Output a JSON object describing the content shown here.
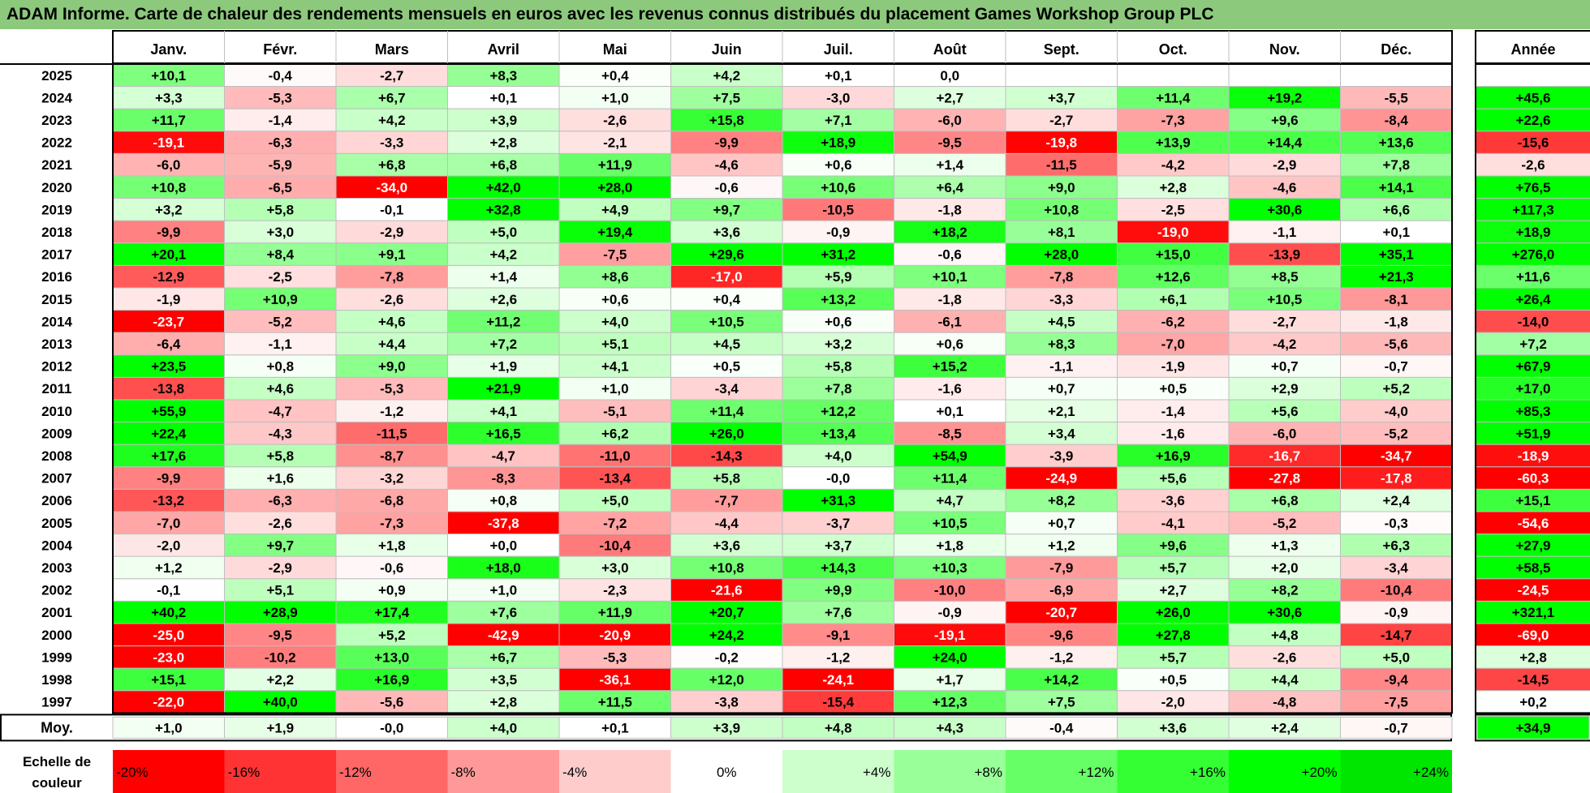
{
  "title": "ADAM Informe. Carte de chaleur des rendements mensuels en euros avec les revenus connus distribués du placement Games Workshop Group PLC",
  "chart_data": {
    "type": "heatmap",
    "columns": [
      "Janv.",
      "Févr.",
      "Mars",
      "Avril",
      "Mai",
      "Juin",
      "Juil.",
      "Août",
      "Sept.",
      "Oct.",
      "Nov.",
      "Déc."
    ],
    "year_column_label": "Année",
    "rows": [
      {
        "label": "2025",
        "values": [
          "+10,1",
          "-0,4",
          "-2,7",
          "+8,3",
          "+0,4",
          "+4,2",
          "+0,1",
          "0,0",
          "",
          "",
          "",
          ""
        ],
        "year": ""
      },
      {
        "label": "2024",
        "values": [
          "+3,3",
          "-5,3",
          "+6,7",
          "+0,1",
          "+1,0",
          "+7,5",
          "-3,0",
          "+2,7",
          "+3,7",
          "+11,4",
          "+19,2",
          "-5,5"
        ],
        "year": "+45,6"
      },
      {
        "label": "2023",
        "values": [
          "+11,7",
          "-1,4",
          "+4,2",
          "+3,9",
          "-2,6",
          "+15,8",
          "+7,1",
          "-6,0",
          "-2,7",
          "-7,3",
          "+9,6",
          "-8,4"
        ],
        "year": "+22,6"
      },
      {
        "label": "2022",
        "values": [
          "-19,1",
          "-6,3",
          "-3,3",
          "+2,8",
          "-2,1",
          "-9,9",
          "+18,9",
          "-9,5",
          "-19,8",
          "+13,9",
          "+14,4",
          "+13,6"
        ],
        "year": "-15,6"
      },
      {
        "label": "2021",
        "values": [
          "-6,0",
          "-5,9",
          "+6,8",
          "+6,8",
          "+11,9",
          "-4,6",
          "+0,6",
          "+1,4",
          "-11,5",
          "-4,2",
          "-2,9",
          "+7,8"
        ],
        "year": "-2,6"
      },
      {
        "label": "2020",
        "values": [
          "+10,8",
          "-6,5",
          "-34,0",
          "+42,0",
          "+28,0",
          "-0,6",
          "+10,6",
          "+6,4",
          "+9,0",
          "+2,8",
          "-4,6",
          "+14,1"
        ],
        "year": "+76,5"
      },
      {
        "label": "2019",
        "values": [
          "+3,2",
          "+5,8",
          "-0,1",
          "+32,8",
          "+4,9",
          "+9,7",
          "-10,5",
          "-1,8",
          "+10,8",
          "-2,5",
          "+30,6",
          "+6,6"
        ],
        "year": "+117,3"
      },
      {
        "label": "2018",
        "values": [
          "-9,9",
          "+3,0",
          "-2,9",
          "+5,0",
          "+19,4",
          "+3,6",
          "-0,9",
          "+18,2",
          "+8,1",
          "-19,0",
          "-1,1",
          "+0,1"
        ],
        "year": "+18,9"
      },
      {
        "label": "2017",
        "values": [
          "+20,1",
          "+8,4",
          "+9,1",
          "+4,2",
          "-7,5",
          "+29,6",
          "+31,2",
          "-0,6",
          "+28,0",
          "+15,0",
          "-13,9",
          "+35,1"
        ],
        "year": "+276,0"
      },
      {
        "label": "2016",
        "values": [
          "-12,9",
          "-2,5",
          "-7,8",
          "+1,4",
          "+8,6",
          "-17,0",
          "+5,9",
          "+10,1",
          "-7,8",
          "+12,6",
          "+8,5",
          "+21,3"
        ],
        "year": "+11,6"
      },
      {
        "label": "2015",
        "values": [
          "-1,9",
          "+10,9",
          "-2,6",
          "+2,6",
          "+0,6",
          "+0,4",
          "+13,2",
          "-1,8",
          "-3,3",
          "+6,1",
          "+10,5",
          "-8,1"
        ],
        "year": "+26,4"
      },
      {
        "label": "2014",
        "values": [
          "-23,7",
          "-5,2",
          "+4,6",
          "+11,2",
          "+4,0",
          "+10,5",
          "+0,6",
          "-6,1",
          "+4,5",
          "-6,2",
          "-2,7",
          "-1,8"
        ],
        "year": "-14,0"
      },
      {
        "label": "2013",
        "values": [
          "-6,4",
          "-1,1",
          "+4,4",
          "+7,2",
          "+5,1",
          "+4,5",
          "+3,2",
          "+0,6",
          "+8,3",
          "-7,0",
          "-4,2",
          "-5,6"
        ],
        "year": "+7,2"
      },
      {
        "label": "2012",
        "values": [
          "+23,5",
          "+0,8",
          "+9,0",
          "+1,9",
          "+4,1",
          "+0,5",
          "+5,8",
          "+15,2",
          "-1,1",
          "-1,9",
          "+0,7",
          "-0,7"
        ],
        "year": "+67,9"
      },
      {
        "label": "2011",
        "values": [
          "-13,8",
          "+4,6",
          "-5,3",
          "+21,9",
          "+1,0",
          "-3,4",
          "+7,8",
          "-1,6",
          "+0,7",
          "+0,5",
          "+2,9",
          "+5,2"
        ],
        "year": "+17,0"
      },
      {
        "label": "2010",
        "values": [
          "+55,9",
          "-4,7",
          "-1,2",
          "+4,1",
          "-5,1",
          "+11,4",
          "+12,2",
          "+0,1",
          "+2,1",
          "-1,4",
          "+5,6",
          "-4,0"
        ],
        "year": "+85,3"
      },
      {
        "label": "2009",
        "values": [
          "+22,4",
          "-4,3",
          "-11,5",
          "+16,5",
          "+6,2",
          "+26,0",
          "+13,4",
          "-8,5",
          "+3,4",
          "-1,6",
          "-6,0",
          "-5,2"
        ],
        "year": "+51,9"
      },
      {
        "label": "2008",
        "values": [
          "+17,6",
          "+5,8",
          "-8,7",
          "-4,7",
          "-11,0",
          "-14,3",
          "+4,0",
          "+54,9",
          "-3,9",
          "+16,9",
          "-16,7",
          "-34,7"
        ],
        "year": "-18,9"
      },
      {
        "label": "2007",
        "values": [
          "-9,9",
          "+1,6",
          "-3,2",
          "-8,3",
          "-13,4",
          "+5,8",
          "-0,0",
          "+11,4",
          "-24,9",
          "+5,6",
          "-27,8",
          "-17,8"
        ],
        "year": "-60,3"
      },
      {
        "label": "2006",
        "values": [
          "-13,2",
          "-6,3",
          "-6,8",
          "+0,8",
          "+5,0",
          "-7,7",
          "+31,3",
          "+4,7",
          "+8,2",
          "-3,6",
          "+6,8",
          "+2,4"
        ],
        "year": "+15,1"
      },
      {
        "label": "2005",
        "values": [
          "-7,0",
          "-2,6",
          "-7,3",
          "-37,8",
          "-7,2",
          "-4,4",
          "-3,7",
          "+10,5",
          "+0,7",
          "-4,1",
          "-5,2",
          "-0,3"
        ],
        "year": "-54,6"
      },
      {
        "label": "2004",
        "values": [
          "-2,0",
          "+9,7",
          "+1,8",
          "+0,0",
          "-10,4",
          "+3,6",
          "+3,7",
          "+1,8",
          "+1,2",
          "+9,6",
          "+1,3",
          "+6,3"
        ],
        "year": "+27,9"
      },
      {
        "label": "2003",
        "values": [
          "+1,2",
          "-2,9",
          "-0,6",
          "+18,0",
          "+3,0",
          "+10,8",
          "+14,3",
          "+10,3",
          "-7,9",
          "+5,7",
          "+2,0",
          "-3,4"
        ],
        "year": "+58,5"
      },
      {
        "label": "2002",
        "values": [
          "-0,1",
          "+5,1",
          "+0,9",
          "+1,0",
          "-2,3",
          "-21,6",
          "+9,9",
          "-10,0",
          "-6,9",
          "+2,7",
          "+8,2",
          "-10,4"
        ],
        "year": "-24,5"
      },
      {
        "label": "2001",
        "values": [
          "+40,2",
          "+28,9",
          "+17,4",
          "+7,6",
          "+11,9",
          "+20,7",
          "+7,6",
          "-0,9",
          "-20,7",
          "+26,0",
          "+30,6",
          "-0,9"
        ],
        "year": "+321,1"
      },
      {
        "label": "2000",
        "values": [
          "-25,0",
          "-9,5",
          "+5,2",
          "-42,9",
          "-20,9",
          "+24,2",
          "-9,1",
          "-19,1",
          "-9,6",
          "+27,8",
          "+4,8",
          "-14,7"
        ],
        "year": "-69,0"
      },
      {
        "label": "1999",
        "values": [
          "-23,0",
          "-10,2",
          "+13,0",
          "+6,7",
          "-5,3",
          "-0,2",
          "-1,2",
          "+24,0",
          "-1,2",
          "+5,7",
          "-2,6",
          "+5,0"
        ],
        "year": "+2,8"
      },
      {
        "label": "1998",
        "values": [
          "+15,1",
          "+2,2",
          "+16,9",
          "+3,5",
          "-36,1",
          "+12,0",
          "-24,1",
          "+1,7",
          "+14,2",
          "+0,5",
          "+4,4",
          "-9,4"
        ],
        "year": "-14,5"
      },
      {
        "label": "1997",
        "values": [
          "-22,0",
          "+40,0",
          "-5,6",
          "+2,8",
          "+11,5",
          "-3,8",
          "-15,4",
          "+12,3",
          "+7,5",
          "-2,0",
          "-4,8",
          "-7,5"
        ],
        "year": "+0,2"
      }
    ],
    "average": {
      "label": "Moy.",
      "values": [
        "+1,0",
        "+1,9",
        "-0,0",
        "+4,0",
        "+0,1",
        "+3,9",
        "+4,8",
        "+4,3",
        "-0,4",
        "+3,6",
        "+2,4",
        "-0,7"
      ],
      "year": "+34,9"
    },
    "scale": {
      "label_lines": [
        "Echelle de",
        "couleur"
      ],
      "steps": [
        {
          "label": "-20%",
          "value": -20,
          "color": "#ff0000"
        },
        {
          "label": "-16%",
          "value": -16,
          "color": "#ff3333"
        },
        {
          "label": "-12%",
          "value": -12,
          "color": "#ff6666"
        },
        {
          "label": "-8%",
          "value": -8,
          "color": "#ff9999"
        },
        {
          "label": "-4%",
          "value": -4,
          "color": "#ffcccc"
        },
        {
          "label": "0%",
          "value": 0,
          "color": "#ffffff"
        },
        {
          "label": "+4%",
          "value": 4,
          "color": "#ccffcc"
        },
        {
          "label": "+8%",
          "value": 8,
          "color": "#99ff99"
        },
        {
          "label": "+12%",
          "value": 12,
          "color": "#66ff66"
        },
        {
          "label": "+16%",
          "value": 16,
          "color": "#33ff33"
        },
        {
          "label": "+20%",
          "value": 20,
          "color": "#00ff00"
        },
        {
          "label": "+24%",
          "value": 24,
          "color": "#00e600"
        }
      ]
    },
    "colors": {
      "positive": "#00ff00",
      "negative": "#ff0000",
      "neutral": "#ffffff",
      "title_bar": "#8cc97c",
      "grid": "#bfbfbf"
    }
  }
}
